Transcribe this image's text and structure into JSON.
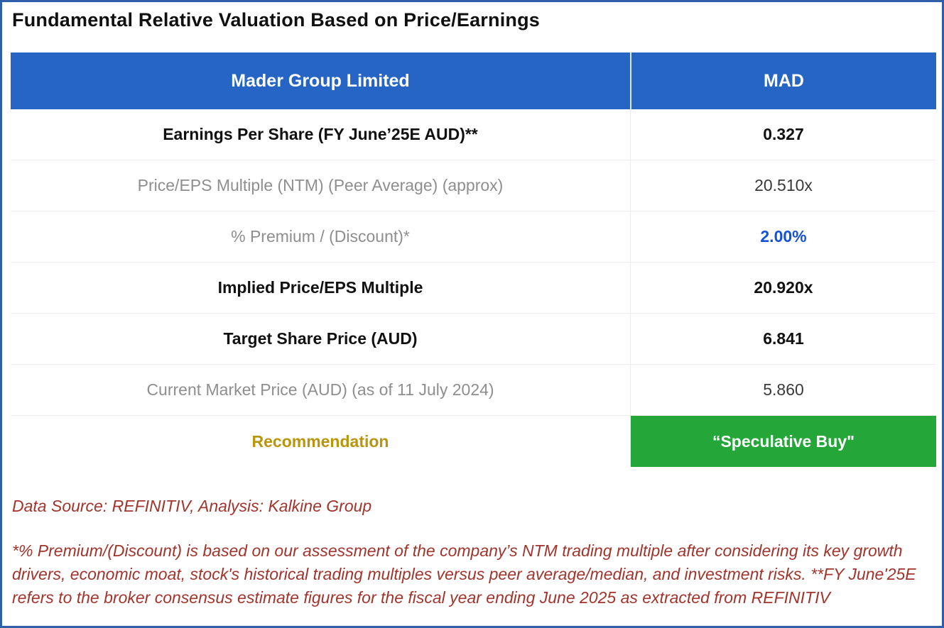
{
  "page": {
    "title": "Fundamental Relative Valuation Based on Price/Earnings"
  },
  "table": {
    "header": {
      "company": "Mader Group Limited",
      "ticker": "MAD"
    },
    "rows": [
      {
        "label": "Earnings Per Share (FY June’25E AUD)**",
        "value": "0.327"
      },
      {
        "label": "Price/EPS Multiple (NTM) (Peer Average) (approx)",
        "value": "20.510x"
      },
      {
        "label": "% Premium / (Discount)*",
        "value": "2.00%"
      },
      {
        "label": "Implied Price/EPS Multiple",
        "value": "20.920x"
      },
      {
        "label": "Target Share Price (AUD)",
        "value": "6.841"
      },
      {
        "label": "Current Market Price (AUD) (as of 11 July 2024)",
        "value": "5.860"
      },
      {
        "label": "Recommendation",
        "value": "“Speculative Buy\""
      }
    ]
  },
  "footer": {
    "source": "Data Source: REFINITIV, Analysis: Kalkine Group",
    "note": "*% Premium/(Discount) is based on our assessment of the company’s NTM trading multiple after considering its key growth drivers, economic moat, stock's historical trading multiples versus peer average/median, and investment risks. **FY June'25E refers to the broker consensus estimate figures for the fiscal year ending June 2025 as extracted from REFINITIV"
  },
  "colors": {
    "header_blue": "#2765c5",
    "frame_border_blue": "#2e5fa8",
    "recommendation_green": "#25a639",
    "recommendation_gold": "#b8960b",
    "premium_blue": "#1353d6",
    "footnote_red": "#a2342b",
    "muted_gray": "#8e8e8e"
  }
}
